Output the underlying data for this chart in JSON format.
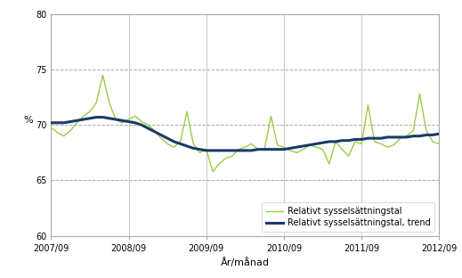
{
  "title": "",
  "ylabel": "%",
  "xlabel": "År/månad",
  "ylim": [
    60,
    80
  ],
  "yticks": [
    60,
    65,
    70,
    75,
    80
  ],
  "xtick_labels": [
    "2007/09",
    "2008/09",
    "2009/09",
    "2010/09",
    "2011/09",
    "2012/09"
  ],
  "line_color": "#99cc44",
  "trend_color": "#1a3a6b",
  "line_label": "Relativt sysselsättningstal",
  "trend_label": "Relativt sysselsättningstal, trend",
  "background_color": "#ffffff",
  "grid_color": "#aaaaaa",
  "raw_values": [
    69.8,
    69.3,
    69.0,
    69.5,
    70.2,
    70.8,
    71.2,
    72.0,
    74.5,
    72.0,
    70.5,
    70.2,
    70.5,
    70.8,
    70.3,
    70.0,
    69.5,
    68.8,
    68.3,
    68.0,
    68.5,
    71.2,
    68.3,
    67.5,
    67.8,
    65.8,
    66.5,
    67.0,
    67.2,
    67.8,
    68.0,
    68.3,
    67.8,
    67.8,
    70.8,
    68.2,
    68.0,
    67.7,
    67.5,
    67.8,
    68.2,
    68.0,
    67.8,
    66.5,
    68.5,
    67.8,
    67.2,
    68.5,
    68.3,
    71.8,
    68.5,
    68.3,
    68.0,
    68.2,
    68.8,
    69.0,
    69.5,
    72.8,
    69.5,
    68.5,
    68.3
  ],
  "trend_values": [
    70.2,
    70.2,
    70.2,
    70.3,
    70.4,
    70.5,
    70.6,
    70.7,
    70.7,
    70.6,
    70.5,
    70.4,
    70.3,
    70.2,
    70.0,
    69.7,
    69.4,
    69.1,
    68.8,
    68.5,
    68.3,
    68.1,
    67.9,
    67.8,
    67.7,
    67.7,
    67.7,
    67.7,
    67.7,
    67.7,
    67.7,
    67.7,
    67.8,
    67.8,
    67.8,
    67.8,
    67.8,
    67.9,
    68.0,
    68.1,
    68.2,
    68.3,
    68.4,
    68.5,
    68.5,
    68.6,
    68.6,
    68.7,
    68.7,
    68.8,
    68.8,
    68.8,
    68.9,
    68.9,
    68.9,
    68.9,
    69.0,
    69.0,
    69.1,
    69.1,
    69.2
  ]
}
